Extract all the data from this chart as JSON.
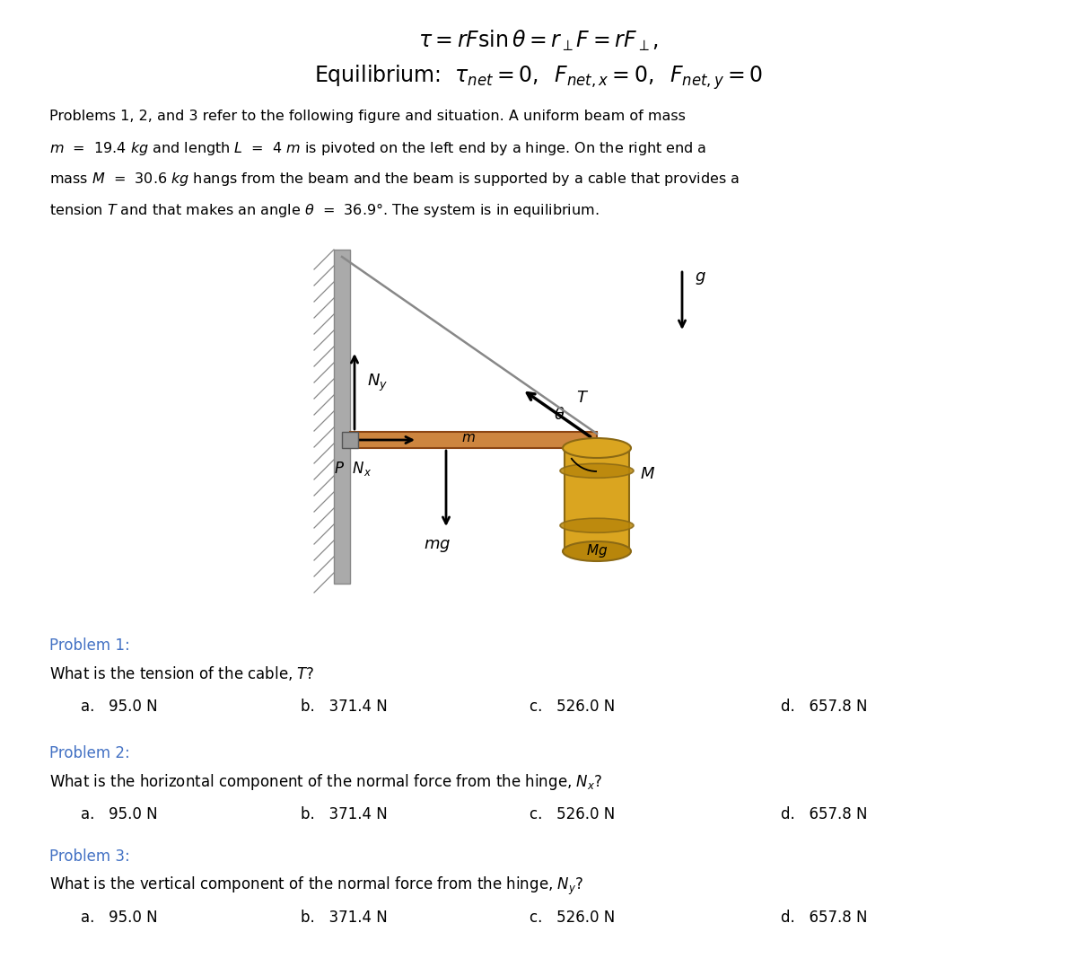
{
  "title_line1": "$\\tau = rF\\sin\\theta = r_{\\perp}F = rF_{\\perp},$",
  "title_line2": "Equilibrium:  $\\tau_{net} = 0,\\;\\; F_{net,x} = 0,\\;\\; F_{net,y} = 0$",
  "para_line1": "Problems 1, 2, and 3 refer to the following figure and situation. A uniform beam of mass",
  "para_line2": "$m$  =  19.4 $kg$ and length $L$  =  4 $m$ is pivoted on the left end by a hinge. On the right end a",
  "para_line3": "mass $M$  =  30.6 $kg$ hangs from the beam and the beam is supported by a cable that provides a",
  "para_line4": "tension $T$ and that makes an angle $\\theta$  =  36.9°. The system is in equilibrium.",
  "problem1_header": "Problem 1:",
  "problem1_q": "What is the tension of the cable, $T$?",
  "problem2_header": "Problem 2:",
  "problem2_q": "What is the horizontal component of the normal force from the hinge, $N_x$?",
  "problem3_header": "Problem 3:",
  "problem3_q": "What is the vertical component of the normal force from the hinge, $N_y$?",
  "choices": [
    "a.   95.0 N",
    "b.   371.4 N",
    "c.   526.0 N",
    "d.   657.8 N"
  ],
  "header_color": "#4472C4",
  "text_color": "#000000",
  "bg_color": "#ffffff",
  "wall_color": "#aaaaaa",
  "wall_edge": "#888888",
  "beam_color": "#CD853F",
  "beam_edge": "#8B4513",
  "hinge_color": "#999999",
  "cable_color": "#888888",
  "barrel_body": "#DAA520",
  "barrel_ring": "#B8860B",
  "barrel_edge": "#8B6914"
}
